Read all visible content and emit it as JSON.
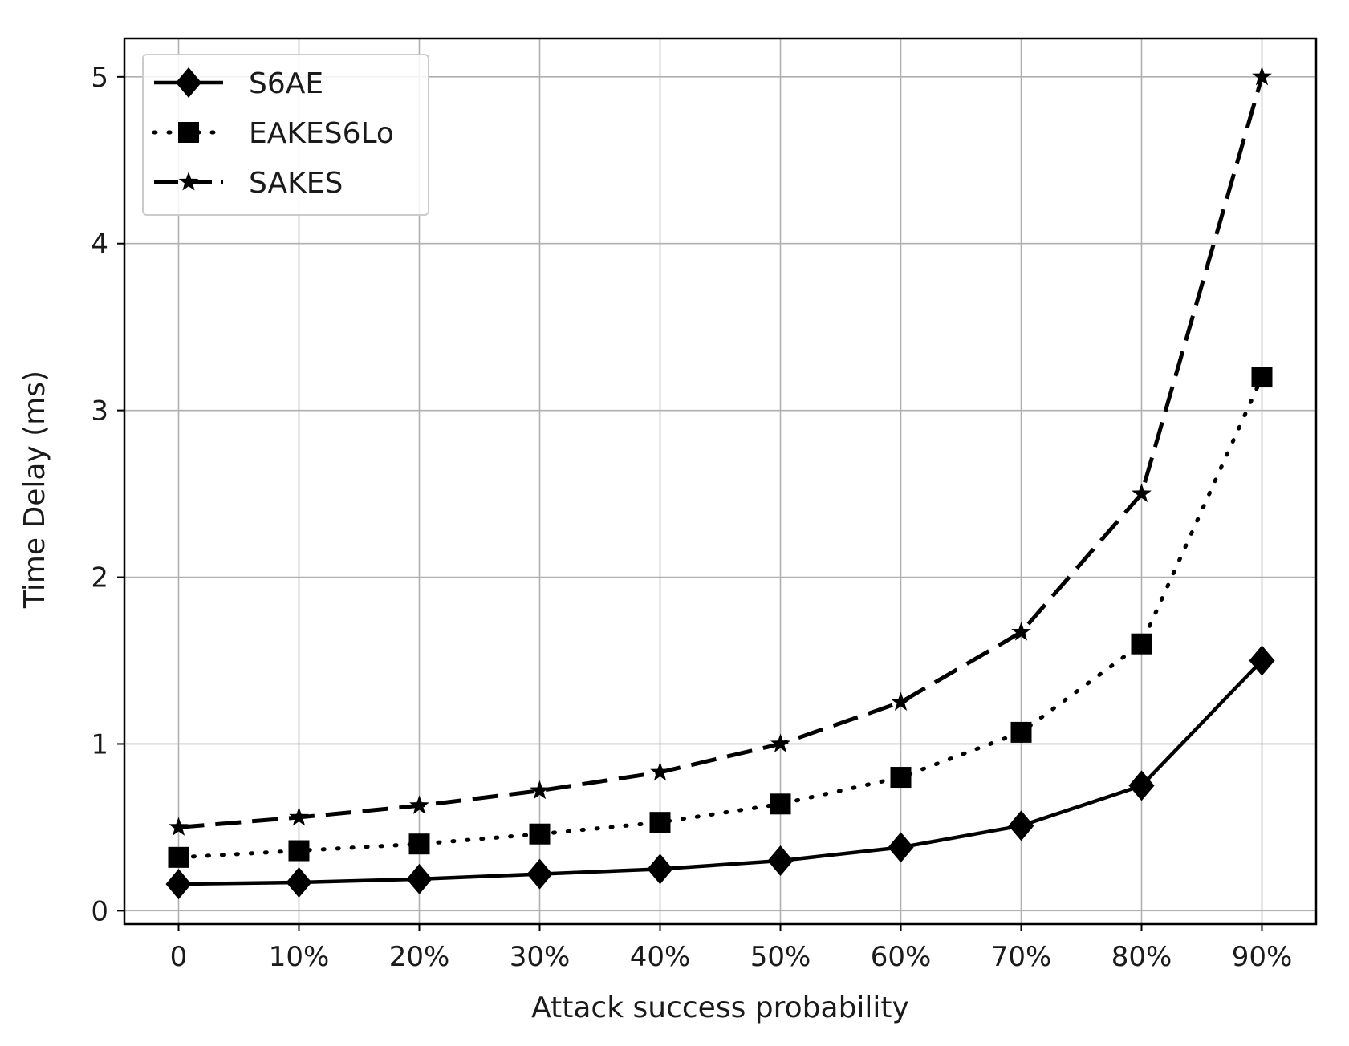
{
  "chart_data": {
    "type": "line",
    "xlabel": "Attack success probability",
    "ylabel": "Time Delay (ms)",
    "categories": [
      "0",
      "10%",
      "20%",
      "30%",
      "40%",
      "50%",
      "60%",
      "70%",
      "80%",
      "90%"
    ],
    "x": [
      0,
      0.1,
      0.2,
      0.3,
      0.4,
      0.5,
      0.6,
      0.7,
      0.8,
      0.9
    ],
    "yticks": [
      0,
      1,
      2,
      3,
      4,
      5
    ],
    "ylim": [
      -0.08,
      5.23
    ],
    "xlim": [
      -0.045,
      0.945
    ],
    "grid": true,
    "legend_position": "top-left",
    "series": [
      {
        "name": "S6AE",
        "values": [
          0.16,
          0.17,
          0.19,
          0.22,
          0.25,
          0.3,
          0.38,
          0.51,
          0.75,
          1.5
        ],
        "linestyle": "solid",
        "marker": "diamond",
        "color": "#000000"
      },
      {
        "name": "EAKES6Lo",
        "values": [
          0.32,
          0.36,
          0.4,
          0.46,
          0.53,
          0.64,
          0.8,
          1.07,
          1.6,
          3.2
        ],
        "linestyle": "dotted",
        "marker": "square",
        "color": "#000000"
      },
      {
        "name": "SAKES",
        "values": [
          0.5,
          0.56,
          0.63,
          0.72,
          0.83,
          1.0,
          1.25,
          1.67,
          2.5,
          5.0
        ],
        "linestyle": "dashed",
        "marker": "star",
        "color": "#000000"
      }
    ]
  }
}
